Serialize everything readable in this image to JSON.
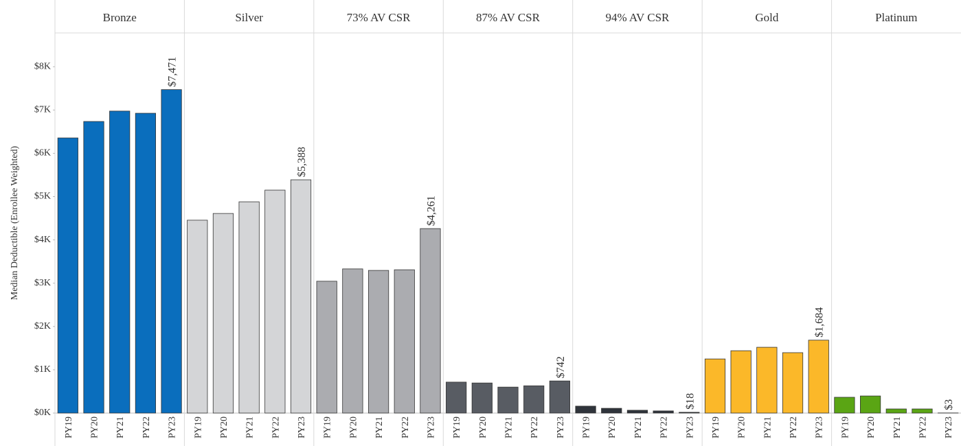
{
  "chart_data": {
    "type": "bar",
    "y_label": "Median Deductible (Enrollee Weighted)",
    "categories": [
      "PY19",
      "PY20",
      "PY21",
      "PY22",
      "PY23"
    ],
    "series": [
      {
        "name": "Bronze",
        "color": "#0a6ebd",
        "values": [
          6355,
          6735,
          6975,
          6925,
          7471
        ],
        "value_labels": [
          null,
          null,
          null,
          null,
          "$7,471"
        ]
      },
      {
        "name": "Silver",
        "color": "#d4d5d7",
        "values": [
          4455,
          4610,
          4880,
          5150,
          5388
        ],
        "value_labels": [
          null,
          null,
          null,
          null,
          "$5,388"
        ]
      },
      {
        "name": "73% AV CSR",
        "color": "#abacb0",
        "values": [
          3045,
          3330,
          3295,
          3310,
          4261
        ],
        "value_labels": [
          null,
          null,
          null,
          null,
          "$4,261"
        ]
      },
      {
        "name": "87% AV CSR",
        "color": "#585c63",
        "values": [
          715,
          695,
          600,
          630,
          742
        ],
        "value_labels": [
          null,
          null,
          null,
          null,
          "$742"
        ]
      },
      {
        "name": "94% AV CSR",
        "color": "#2f343b",
        "values": [
          160,
          110,
          65,
          50,
          18
        ],
        "value_labels": [
          null,
          null,
          null,
          null,
          "$18"
        ]
      },
      {
        "name": "Gold",
        "color": "#fbb829",
        "values": [
          1250,
          1440,
          1520,
          1395,
          1684
        ],
        "value_labels": [
          null,
          null,
          null,
          null,
          "$1,684"
        ]
      },
      {
        "name": "Platinum",
        "color": "#5aa514",
        "values": [
          365,
          395,
          95,
          95,
          3
        ],
        "value_labels": [
          null,
          null,
          null,
          null,
          "$3"
        ]
      }
    ],
    "ylim": [
      0,
      8780
    ],
    "yticks": [
      {
        "value": 0,
        "label": "$0K"
      },
      {
        "value": 1000,
        "label": "$1K"
      },
      {
        "value": 2000,
        "label": "$2K"
      },
      {
        "value": 3000,
        "label": "$3K"
      },
      {
        "value": 4000,
        "label": "$4K"
      },
      {
        "value": 5000,
        "label": "$5K"
      },
      {
        "value": 6000,
        "label": "$6K"
      },
      {
        "value": 7000,
        "label": "$7K"
      },
      {
        "value": 8000,
        "label": "$8K"
      }
    ]
  }
}
